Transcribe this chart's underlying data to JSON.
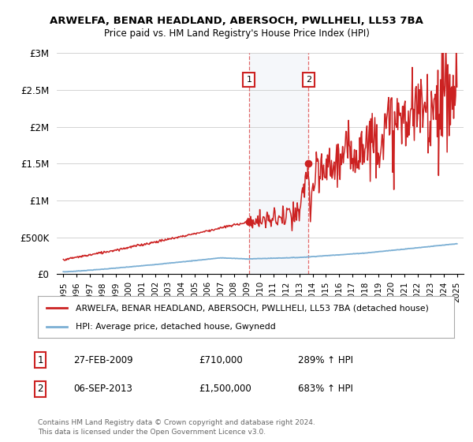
{
  "title": "ARWELFA, BENAR HEADLAND, ABERSOCH, PWLLHELI, LL53 7BA",
  "subtitle": "Price paid vs. HM Land Registry's House Price Index (HPI)",
  "ylim": [
    0,
    3000000
  ],
  "yticks": [
    0,
    500000,
    1000000,
    1500000,
    2000000,
    2500000,
    3000000
  ],
  "ytick_labels": [
    "£0",
    "£500K",
    "£1M",
    "£1.5M",
    "£2M",
    "£2.5M",
    "£3M"
  ],
  "hpi_color": "#7bafd4",
  "price_color": "#cc2222",
  "background_color": "#ffffff",
  "grid_color": "#cccccc",
  "annotation1": {
    "label": "1",
    "x_year": 2009.15,
    "y": 710000
  },
  "annotation2": {
    "label": "2",
    "x_year": 2013.68,
    "y": 1500000
  },
  "legend_line1": "ARWELFA, BENAR HEADLAND, ABERSOCH, PWLLHELI, LL53 7BA (detached house)",
  "legend_line2": "HPI: Average price, detached house, Gwynedd",
  "footnote": "Contains HM Land Registry data © Crown copyright and database right 2024.\nThis data is licensed under the Open Government Licence v3.0.",
  "table_rows": [
    {
      "num": "1",
      "date": "27-FEB-2009",
      "price": "£710,000",
      "pct": "289% ↑ HPI"
    },
    {
      "num": "2",
      "date": "06-SEP-2013",
      "price": "£1,500,000",
      "pct": "683% ↑ HPI"
    }
  ],
  "xlim_start": 1994.5,
  "xlim_end": 2025.5,
  "xticks": [
    1995,
    1996,
    1997,
    1998,
    1999,
    2000,
    2001,
    2002,
    2003,
    2004,
    2005,
    2006,
    2007,
    2008,
    2009,
    2010,
    2011,
    2012,
    2013,
    2014,
    2015,
    2016,
    2017,
    2018,
    2019,
    2020,
    2021,
    2022,
    2023,
    2024,
    2025
  ]
}
